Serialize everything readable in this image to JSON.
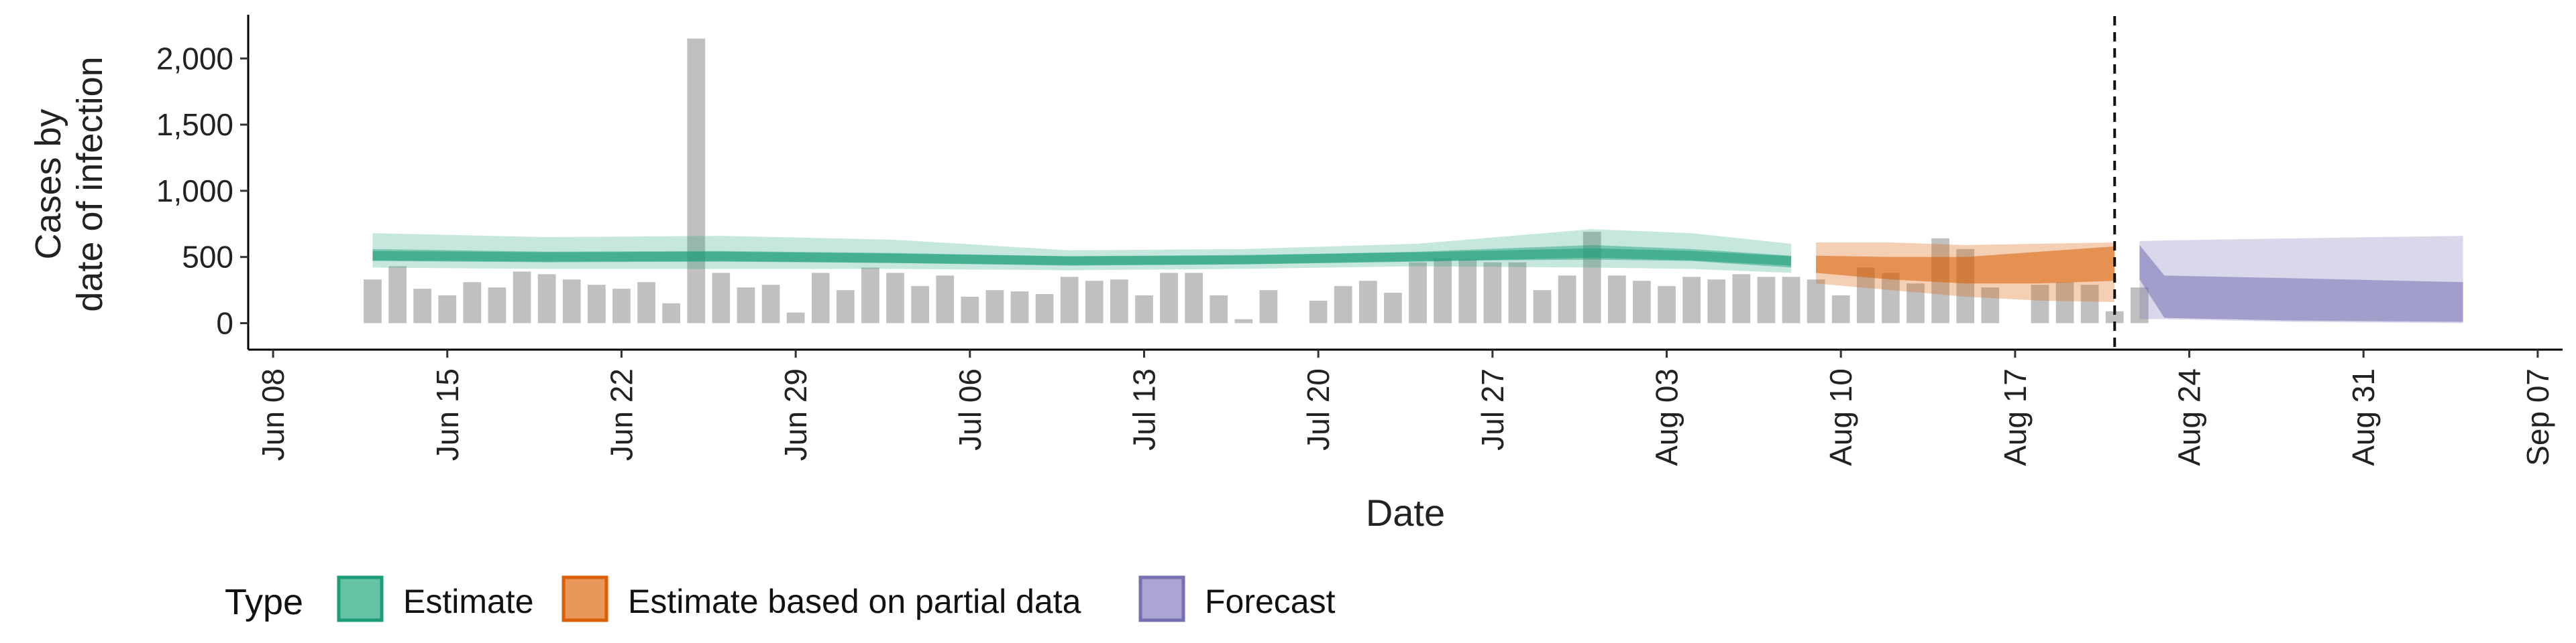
{
  "chart_data": {
    "type": "bar",
    "title": "",
    "xlabel": "Date",
    "ylabel_lines": [
      "Cases by",
      "date of infection"
    ],
    "x_range": [
      "2020-06-07",
      "2020-09-08"
    ],
    "ylim": [
      -200,
      2300
    ],
    "y_ticks": [
      0,
      500,
      1000,
      1500,
      2000
    ],
    "y_tick_labels": [
      "0",
      "500",
      "1,000",
      "1,500",
      "2,000"
    ],
    "x_ticks": [
      "2020-06-08",
      "2020-06-15",
      "2020-06-22",
      "2020-06-29",
      "2020-07-06",
      "2020-07-13",
      "2020-07-20",
      "2020-07-27",
      "2020-08-03",
      "2020-08-10",
      "2020-08-17",
      "2020-08-24",
      "2020-08-31",
      "2020-09-07"
    ],
    "x_tick_labels": [
      "Jun 08",
      "Jun 15",
      "Jun 22",
      "Jun 29",
      "Jul 06",
      "Jul 13",
      "Jul 20",
      "Jul 27",
      "Aug 03",
      "Aug 10",
      "Aug 17",
      "Aug 24",
      "Aug 31",
      "Sep 07"
    ],
    "grid": false,
    "legend": {
      "position": "bottom",
      "title": "Type",
      "entries": [
        {
          "label": "Estimate",
          "fill": "#66c2a5",
          "stroke": "#1b9e77"
        },
        {
          "label": "Estimate based on partial data",
          "fill": "#e8965a",
          "stroke": "#d95f02"
        },
        {
          "label": "Forecast",
          "fill": "#aaa5d4",
          "stroke": "#7570b3"
        }
      ]
    },
    "colors": {
      "bars": "#bdbdbd",
      "estimate": "#1b9e77",
      "partial": "#d95f02",
      "forecast": "#7570b3",
      "vline": "#111111"
    },
    "bars": {
      "start_date": "2020-06-12",
      "values": [
        330,
        430,
        260,
        210,
        310,
        270,
        390,
        370,
        330,
        290,
        260,
        310,
        150,
        2150,
        380,
        270,
        290,
        80,
        380,
        250,
        420,
        380,
        280,
        360,
        200,
        250,
        240,
        220,
        350,
        320,
        330,
        210,
        380,
        380,
        210,
        30,
        250,
        0,
        170,
        280,
        320,
        230,
        460,
        490,
        480,
        460,
        460,
        250,
        360,
        690,
        360,
        320,
        280,
        350,
        330,
        370,
        350,
        350,
        330,
        210,
        420,
        380,
        300,
        640,
        560,
        270,
        0,
        290,
        310,
        290,
        90,
        270
      ]
    },
    "estimate": {
      "start_date": "2020-06-12",
      "end_date": "2020-08-08",
      "dates": [
        "2020-06-12",
        "2020-06-19",
        "2020-06-26",
        "2020-07-03",
        "2020-07-10",
        "2020-07-17",
        "2020-07-24",
        "2020-07-31",
        "2020-08-04",
        "2020-08-08"
      ],
      "median": [
        510,
        500,
        505,
        490,
        470,
        480,
        500,
        530,
        510,
        470
      ],
      "inner_low": [
        470,
        460,
        465,
        455,
        440,
        445,
        470,
        480,
        470,
        420
      ],
      "inner_high": [
        560,
        540,
        545,
        530,
        505,
        510,
        540,
        590,
        560,
        510
      ],
      "outer_low": [
        420,
        410,
        410,
        410,
        400,
        410,
        430,
        420,
        410,
        380
      ],
      "outer_high": [
        680,
        650,
        660,
        630,
        550,
        560,
        600,
        710,
        680,
        600
      ]
    },
    "partial": {
      "start_date": "2020-08-09",
      "end_date": "2020-08-21",
      "dates": [
        "2020-08-09",
        "2020-08-12",
        "2020-08-15",
        "2020-08-18",
        "2020-08-21"
      ],
      "inner_low": [
        380,
        330,
        300,
        300,
        320
      ],
      "inner_high": [
        510,
        500,
        500,
        540,
        580
      ],
      "outer_low": [
        300,
        250,
        200,
        170,
        160
      ],
      "outer_high": [
        610,
        610,
        590,
        600,
        610
      ]
    },
    "forecast": {
      "start_date": "2020-08-22",
      "end_date": "2020-09-04",
      "dates": [
        "2020-08-22",
        "2020-08-23",
        "2020-08-28",
        "2020-09-04"
      ],
      "inner_low": [
        330,
        40,
        20,
        10
      ],
      "inner_high": [
        590,
        360,
        340,
        310
      ],
      "outer_low": [
        30,
        30,
        10,
        0
      ],
      "outer_high": [
        620,
        625,
        640,
        660
      ]
    },
    "vline_date": "2020-08-21"
  }
}
